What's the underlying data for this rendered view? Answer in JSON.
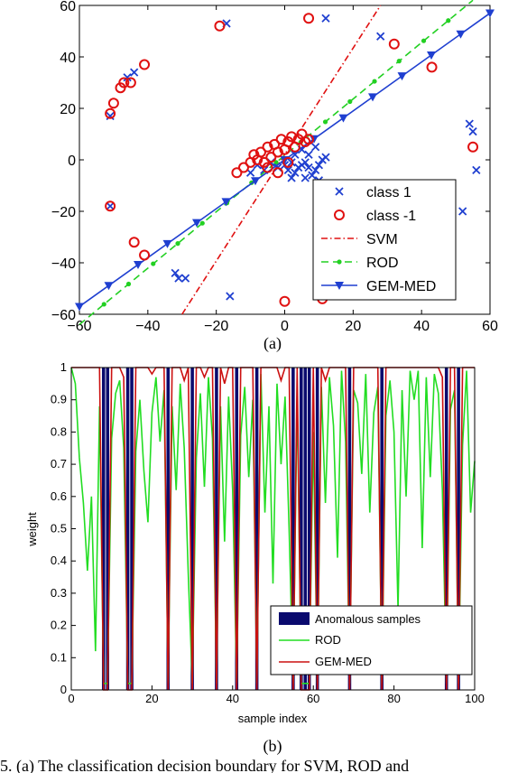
{
  "chart_data": [
    {
      "panel_label": "(a)",
      "type": "scatter",
      "title": "",
      "xlabel": "",
      "ylabel": "",
      "xlim": [
        -60,
        60
      ],
      "ylim": [
        -60,
        60
      ],
      "xticks": [
        -60,
        -40,
        -20,
        0,
        20,
        40,
        60
      ],
      "yticks": [
        -60,
        -40,
        -20,
        0,
        20,
        40,
        60
      ],
      "legend_position": "lower-right",
      "series": [
        {
          "name": "class 1",
          "kind": "scatter",
          "marker": "x",
          "color": "#1f3fd0",
          "points": [
            [
              -51,
              17
            ],
            [
              -46,
              32
            ],
            [
              -44,
              34
            ],
            [
              -51,
              -18
            ],
            [
              -32,
              -44
            ],
            [
              -31,
              -46
            ],
            [
              -29,
              -46
            ],
            [
              -17,
              53
            ],
            [
              -16,
              -53
            ],
            [
              -10,
              -5
            ],
            [
              -8,
              -2
            ],
            [
              -6,
              -4
            ],
            [
              -4,
              -1
            ],
            [
              -2,
              -3
            ],
            [
              0,
              -2
            ],
            [
              1,
              -4
            ],
            [
              2,
              -1
            ],
            [
              3,
              -5
            ],
            [
              4,
              -3
            ],
            [
              5,
              -2
            ],
            [
              6,
              -1
            ],
            [
              7,
              -3
            ],
            [
              8,
              -6
            ],
            [
              9,
              -4
            ],
            [
              10,
              -2
            ],
            [
              11,
              0
            ],
            [
              12,
              1
            ],
            [
              12,
              55
            ],
            [
              3,
              2
            ],
            [
              5,
              4
            ],
            [
              7,
              2
            ],
            [
              9,
              5
            ],
            [
              2,
              -7
            ],
            [
              6,
              -7
            ],
            [
              10,
              -8
            ],
            [
              28,
              48
            ],
            [
              52,
              -20
            ],
            [
              54,
              14
            ],
            [
              55,
              11
            ],
            [
              56,
              -4
            ]
          ]
        },
        {
          "name": "class -1",
          "kind": "scatter",
          "marker": "o",
          "color": "#e01010",
          "points": [
            [
              -51,
              -18
            ],
            [
              -51,
              18
            ],
            [
              -50,
              22
            ],
            [
              -48,
              28
            ],
            [
              -47,
              30
            ],
            [
              -45,
              30
            ],
            [
              -41,
              37
            ],
            [
              -44,
              -32
            ],
            [
              -41,
              -37
            ],
            [
              -19,
              52
            ],
            [
              7,
              55
            ],
            [
              32,
              45
            ],
            [
              43,
              36
            ],
            [
              55,
              5
            ],
            [
              0,
              -55
            ],
            [
              11,
              -54
            ],
            [
              -14,
              -5
            ],
            [
              -12,
              -3
            ],
            [
              -10,
              -1
            ],
            [
              -9,
              2
            ],
            [
              -8,
              0
            ],
            [
              -7,
              3
            ],
            [
              -6,
              -1
            ],
            [
              -5,
              5
            ],
            [
              -4,
              1
            ],
            [
              -3,
              6
            ],
            [
              -2,
              3
            ],
            [
              -1,
              8
            ],
            [
              0,
              4
            ],
            [
              1,
              7
            ],
            [
              2,
              9
            ],
            [
              3,
              5
            ],
            [
              4,
              8
            ],
            [
              5,
              10
            ],
            [
              6,
              7
            ],
            [
              7,
              8
            ],
            [
              -5,
              -3
            ],
            [
              -2,
              -5
            ],
            [
              1,
              -1
            ]
          ]
        },
        {
          "name": "SVM",
          "kind": "line",
          "style": "dash-dot",
          "color": "#e01010",
          "points": [
            [
              -30,
              -60
            ],
            [
              28,
              60
            ]
          ]
        },
        {
          "name": "ROD",
          "kind": "line",
          "style": "dashed",
          "marker": "dot",
          "color": "#22d022",
          "points": [
            [
              -60,
              -64
            ],
            [
              55,
              62
            ]
          ]
        },
        {
          "name": "GEM-MED",
          "kind": "line",
          "style": "solid",
          "marker": "triangle-down",
          "color": "#1f3fd0",
          "points": [
            [
              -60,
              -57
            ],
            [
              60,
              57
            ]
          ]
        }
      ]
    },
    {
      "panel_label": "(b)",
      "type": "bar-line",
      "title": "",
      "xlabel": "sample index",
      "ylabel": "weight",
      "xlim": [
        0,
        100
      ],
      "ylim": [
        0,
        1
      ],
      "xticks": [
        0,
        20,
        40,
        60,
        80,
        100
      ],
      "yticks": [
        0,
        0.1,
        0.2,
        0.3,
        0.4,
        0.5,
        0.6,
        0.7,
        0.8,
        0.9,
        1
      ],
      "legend_position": "lower-right",
      "anomalous_samples": {
        "name": "Anomalous samples",
        "color": "#0a0a6e",
        "indices": [
          8,
          9,
          14,
          15,
          24,
          30,
          36,
          41,
          46,
          55,
          57,
          58,
          59,
          61,
          69,
          77,
          93,
          96
        ]
      },
      "rod": {
        "name": "ROD",
        "color": "#22dd22",
        "values": [
          1,
          0.95,
          0.72,
          0.58,
          0.37,
          0.6,
          0.12,
          0.88,
          0.02,
          0.02,
          0.78,
          0.92,
          0.96,
          0.75,
          0.02,
          0.02,
          0.74,
          0.9,
          0.68,
          0.52,
          0.86,
          0.97,
          0.77,
          0.93,
          0.02,
          0.88,
          0.62,
          0.95,
          0.75,
          0.36,
          0.02,
          0.72,
          0.92,
          0.63,
          0.97,
          0.78,
          0.02,
          0.88,
          0.46,
          0.91,
          0.62,
          0.02,
          0.79,
          0.94,
          0.66,
          0.9,
          0.02,
          0.98,
          0.55,
          0.88,
          0.33,
          0.95,
          0.7,
          0.91,
          0.5,
          0.02,
          0.92,
          0.02,
          0.02,
          0.02,
          0.8,
          0.02,
          0.94,
          0.58,
          0.97,
          0.82,
          0.41,
          0.99,
          0.77,
          0.02,
          0.93,
          0.89,
          0.67,
          0.98,
          0.55,
          0.86,
          0.94,
          0.02,
          0.85,
          0.96,
          0.8,
          0.25,
          0.93,
          0.6,
          0.99,
          0.9,
          0.99,
          0.44,
          0.97,
          0.66,
          0.98,
          0.92,
          0.62,
          0.02,
          0.87,
          0.93,
          0.02,
          0.76,
          0.99,
          0.55,
          0.71
        ]
      },
      "gemmed": {
        "name": "GEM-MED",
        "color": "#cc1010",
        "values": [
          1,
          1,
          1,
          1,
          1,
          1,
          1,
          1,
          0,
          0,
          1,
          1,
          1,
          0.97,
          0,
          0,
          1,
          1,
          1,
          1,
          0.98,
          1,
          1,
          1,
          0,
          1,
          1,
          1,
          0.96,
          1,
          0,
          1,
          1,
          0.97,
          1,
          1,
          0,
          1,
          0.95,
          1,
          1,
          0,
          1,
          1,
          1,
          1,
          0,
          1,
          1,
          1,
          1,
          1,
          0.96,
          1,
          1,
          0,
          1,
          0,
          0,
          0,
          1,
          0,
          1,
          0.96,
          1,
          1,
          1,
          1,
          1,
          0,
          1,
          1,
          1,
          1,
          1,
          1,
          1,
          0,
          1,
          1,
          1,
          1,
          1,
          1,
          1,
          1,
          1,
          1,
          1,
          1,
          1,
          1,
          0.97,
          0,
          1,
          1,
          0,
          1,
          1,
          1,
          1
        ]
      }
    }
  ],
  "caption": "5.  (a) The classification decision boundary for SVM, ROD and"
}
